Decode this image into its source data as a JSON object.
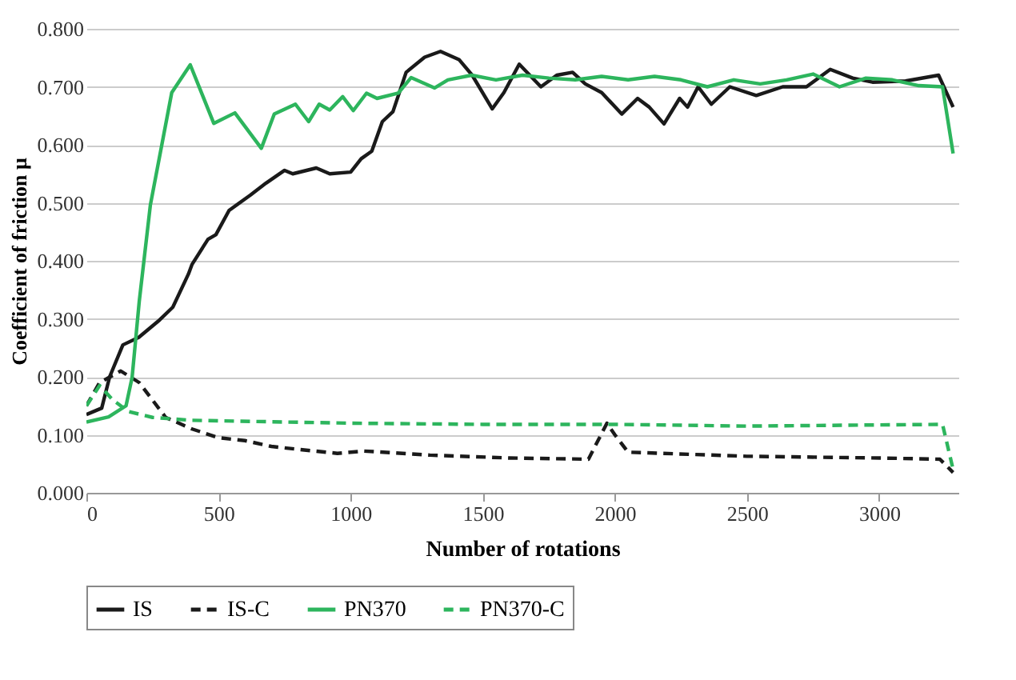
{
  "chart_data": {
    "type": "line",
    "xlabel": "Number of rotations",
    "ylabel": "Coefficient of friction μ",
    "xlim": [
      0,
      3300
    ],
    "xticks": [
      0,
      500,
      1000,
      1500,
      2000,
      2500,
      3000
    ],
    "ylim": [
      0,
      0.8
    ],
    "yticks": [
      {
        "value": 0,
        "label": "0.000"
      },
      {
        "value": 0.1,
        "label": "0.100"
      },
      {
        "value": 0.2,
        "label": "0.200"
      },
      {
        "value": 0.3,
        "label": "0.300"
      },
      {
        "value": 0.4,
        "label": "0.400"
      },
      {
        "value": 0.5,
        "label": "0.500"
      },
      {
        "value": 0.6,
        "label": "0.600"
      },
      {
        "value": 0.7,
        "label": "0.700"
      },
      {
        "value": 0.8,
        "label": "0.800"
      }
    ],
    "grid": "y",
    "legend": "bottom",
    "series": [
      {
        "name": "IS",
        "color": "#1a1a1a",
        "line_style": "solid",
        "x": [
          0,
          58,
          88,
          138,
          198,
          277,
          327,
          386,
          400,
          460,
          490,
          540,
          620,
          680,
          750,
          781,
          870,
          921,
          1000,
          1040,
          1080,
          1120,
          1160,
          1210,
          1280,
          1340,
          1410,
          1460,
          1536,
          1580,
          1638,
          1720,
          1780,
          1840,
          1888,
          1950,
          2026,
          2086,
          2130,
          2186,
          2245,
          2275,
          2315,
          2365,
          2435,
          2535,
          2635,
          2725,
          2815,
          2900,
          2975,
          3100,
          3225,
          3280
        ],
        "values": [
          0.135,
          0.146,
          0.2,
          0.255,
          0.268,
          0.298,
          0.32,
          0.377,
          0.394,
          0.437,
          0.445,
          0.487,
          0.513,
          0.534,
          0.556,
          0.55,
          0.56,
          0.55,
          0.553,
          0.576,
          0.589,
          0.64,
          0.657,
          0.725,
          0.751,
          0.761,
          0.747,
          0.72,
          0.662,
          0.69,
          0.739,
          0.7,
          0.72,
          0.725,
          0.705,
          0.69,
          0.653,
          0.68,
          0.665,
          0.636,
          0.68,
          0.665,
          0.7,
          0.67,
          0.7,
          0.685,
          0.7,
          0.7,
          0.73,
          0.715,
          0.708,
          0.71,
          0.72,
          0.665
        ]
      },
      {
        "name": "IS-C",
        "color": "#1a1a1a",
        "line_style": "dashed",
        "x": [
          0,
          50,
          130,
          200,
          300,
          400,
          500,
          600,
          700,
          800,
          950,
          1050,
          1300,
          1600,
          1900,
          1970,
          2000,
          2050,
          2500,
          3000,
          3230,
          3280
        ],
        "values": [
          0.15,
          0.19,
          0.21,
          0.19,
          0.13,
          0.11,
          0.095,
          0.09,
          0.08,
          0.075,
          0.068,
          0.072,
          0.065,
          0.06,
          0.058,
          0.12,
          0.1,
          0.07,
          0.063,
          0.06,
          0.058,
          0.035
        ]
      },
      {
        "name": "PN370",
        "color": "#2db55d",
        "line_style": "solid",
        "x": [
          0,
          84,
          150,
          173,
          200,
          242,
          323,
          393,
          482,
          562,
          662,
          711,
          791,
          841,
          881,
          921,
          970,
          1010,
          1060,
          1100,
          1180,
          1229,
          1318,
          1368,
          1458,
          1550,
          1650,
          1750,
          1850,
          1950,
          2050,
          2150,
          2250,
          2350,
          2450,
          2550,
          2650,
          2750,
          2850,
          2950,
          3050,
          3150,
          3240,
          3280
        ],
        "values": [
          0.122,
          0.131,
          0.15,
          0.199,
          0.33,
          0.496,
          0.69,
          0.738,
          0.637,
          0.655,
          0.594,
          0.653,
          0.67,
          0.64,
          0.67,
          0.66,
          0.683,
          0.659,
          0.689,
          0.68,
          0.689,
          0.716,
          0.698,
          0.712,
          0.72,
          0.712,
          0.72,
          0.715,
          0.712,
          0.718,
          0.712,
          0.718,
          0.712,
          0.7,
          0.712,
          0.705,
          0.712,
          0.722,
          0.7,
          0.715,
          0.712,
          0.702,
          0.7,
          0.585
        ]
      },
      {
        "name": "PN370-C",
        "color": "#2db55d",
        "line_style": "dashed",
        "x": [
          0,
          50,
          100,
          160,
          250,
          400,
          1000,
          1500,
          2000,
          2500,
          3240,
          3280
        ],
        "values": [
          0.15,
          0.185,
          0.16,
          0.14,
          0.13,
          0.125,
          0.12,
          0.118,
          0.118,
          0.115,
          0.118,
          0.04
        ]
      }
    ]
  }
}
